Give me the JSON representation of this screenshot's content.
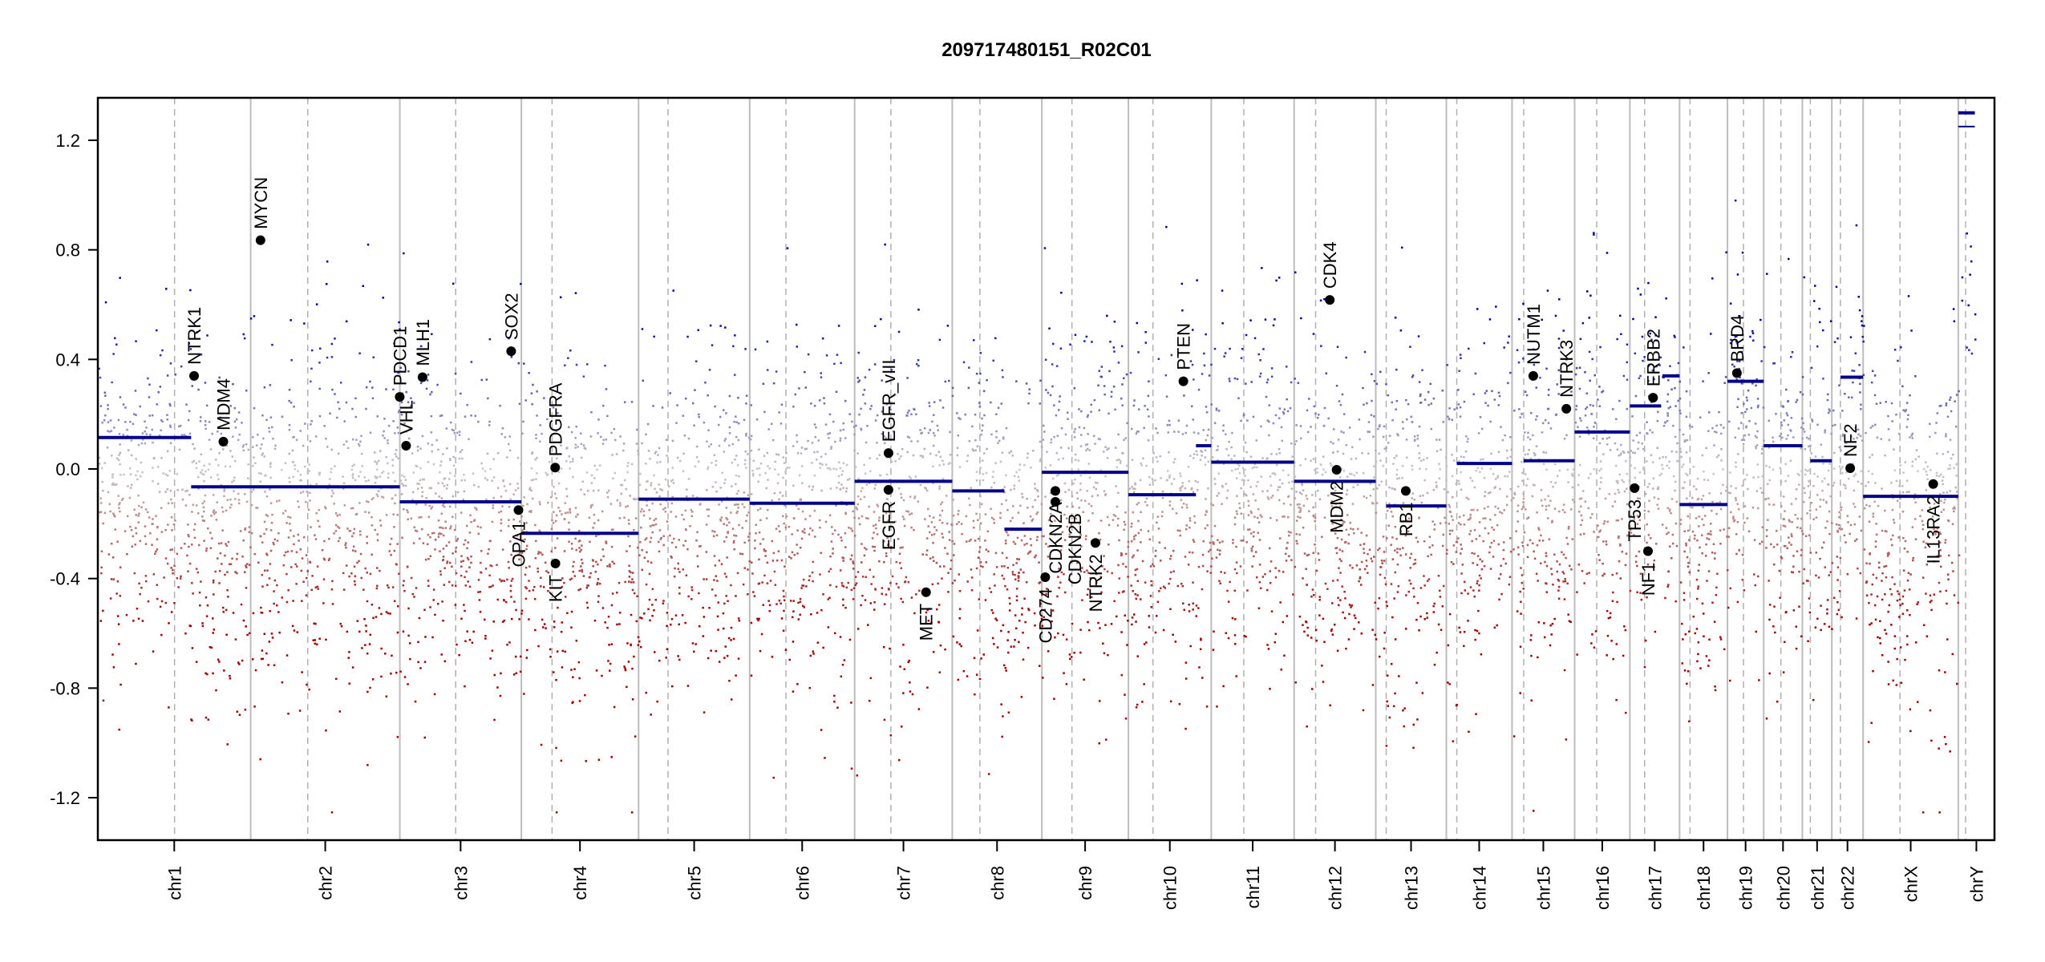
{
  "chart_data": {
    "type": "scatter",
    "title": "209717480151_R02C01",
    "xlabel": "",
    "ylabel": "",
    "ylim": [
      -1.355,
      1.355
    ],
    "y_ticks": [
      "-1.2",
      "-0.8",
      "-0.4",
      "0.0",
      "0.4",
      "0.8",
      "1.2"
    ],
    "y_tick_values": [
      -1.2,
      -0.8,
      -0.4,
      0.0,
      0.4,
      0.8,
      1.2
    ],
    "x_unit": "Mb",
    "chromosomes": [
      {
        "name": "chr1",
        "length": 249,
        "centromere": 125
      },
      {
        "name": "chr2",
        "length": 243,
        "centromere": 93
      },
      {
        "name": "chr3",
        "length": 198,
        "centromere": 91
      },
      {
        "name": "chr4",
        "length": 191,
        "centromere": 50
      },
      {
        "name": "chr5",
        "length": 181,
        "centromere": 48
      },
      {
        "name": "chr6",
        "length": 171,
        "centromere": 59
      },
      {
        "name": "chr7",
        "length": 159,
        "centromere": 59
      },
      {
        "name": "chr8",
        "length": 146,
        "centromere": 45
      },
      {
        "name": "chr9",
        "length": 141,
        "centromere": 49
      },
      {
        "name": "chr10",
        "length": 135,
        "centromere": 40
      },
      {
        "name": "chr11",
        "length": 135,
        "centromere": 53
      },
      {
        "name": "chr12",
        "length": 133,
        "centromere": 35
      },
      {
        "name": "chr13",
        "length": 115,
        "centromere": 17
      },
      {
        "name": "chr14",
        "length": 107,
        "centromere": 17
      },
      {
        "name": "chr15",
        "length": 102,
        "centromere": 19
      },
      {
        "name": "chr16",
        "length": 90,
        "centromere": 36
      },
      {
        "name": "chr17",
        "length": 81,
        "centromere": 24
      },
      {
        "name": "chr18",
        "length": 78,
        "centromere": 17
      },
      {
        "name": "chr19",
        "length": 59,
        "centromere": 26
      },
      {
        "name": "chr20",
        "length": 63,
        "centromere": 28
      },
      {
        "name": "chr21",
        "length": 48,
        "centromere": 13
      },
      {
        "name": "chr22",
        "length": 51,
        "centromere": 14
      },
      {
        "name": "chrX",
        "length": 155,
        "centromere": 60
      },
      {
        "name": "chrY",
        "length": 59,
        "centromere": 12
      }
    ],
    "segments": [
      {
        "chr": "chr1",
        "start": 0,
        "end": 152,
        "value": 0.115
      },
      {
        "chr": "chr1",
        "start": 152,
        "end": 249,
        "value": -0.065
      },
      {
        "chr": "chr2",
        "start": 0,
        "end": 243,
        "value": -0.065
      },
      {
        "chr": "chr3",
        "start": 0,
        "end": 198,
        "value": -0.12
      },
      {
        "chr": "chr4",
        "start": 0,
        "end": 191,
        "value": -0.235
      },
      {
        "chr": "chr5",
        "start": 0,
        "end": 181,
        "value": -0.11
      },
      {
        "chr": "chr6",
        "start": 0,
        "end": 171,
        "value": -0.125
      },
      {
        "chr": "chr7",
        "start": 0,
        "end": 159,
        "value": -0.045
      },
      {
        "chr": "chr8",
        "start": 0,
        "end": 85,
        "value": -0.08
      },
      {
        "chr": "chr8",
        "start": 85,
        "end": 146,
        "value": -0.22
      },
      {
        "chr": "chr9",
        "start": 0,
        "end": 141,
        "value": -0.012
      },
      {
        "chr": "chr10",
        "start": 0,
        "end": 110,
        "value": -0.094
      },
      {
        "chr": "chr10",
        "start": 110,
        "end": 135,
        "value": 0.085
      },
      {
        "chr": "chr11",
        "start": 0,
        "end": 135,
        "value": 0.025
      },
      {
        "chr": "chr12",
        "start": 0,
        "end": 133,
        "value": -0.045
      },
      {
        "chr": "chr13",
        "start": 17,
        "end": 115,
        "value": -0.135
      },
      {
        "chr": "chr14",
        "start": 17,
        "end": 107,
        "value": 0.02
      },
      {
        "chr": "chr15",
        "start": 19,
        "end": 102,
        "value": 0.03
      },
      {
        "chr": "chr16",
        "start": 0,
        "end": 90,
        "value": 0.135
      },
      {
        "chr": "chr17",
        "start": 0,
        "end": 51,
        "value": 0.23
      },
      {
        "chr": "chr17",
        "start": 53,
        "end": 81,
        "value": 0.34
      },
      {
        "chr": "chr18",
        "start": 0,
        "end": 78,
        "value": -0.13
      },
      {
        "chr": "chr19",
        "start": 0,
        "end": 59,
        "value": 0.32
      },
      {
        "chr": "chr20",
        "start": 0,
        "end": 63,
        "value": 0.085
      },
      {
        "chr": "chr21",
        "start": 13,
        "end": 48,
        "value": 0.03
      },
      {
        "chr": "chr22",
        "start": 14,
        "end": 51,
        "value": 0.335
      },
      {
        "chr": "chrX",
        "start": 0,
        "end": 155,
        "value": -0.1
      },
      {
        "chr": "chrY",
        "start": 0,
        "end": 27,
        "value": 1.3
      },
      {
        "chr": "chrY",
        "start": 0,
        "end": 27,
        "value": 1.25
      }
    ],
    "genes": [
      {
        "name": "NTRK1",
        "chr": "chr1",
        "pos": 156.8,
        "value": 0.34
      },
      {
        "name": "MDM4",
        "chr": "chr1",
        "pos": 204.5,
        "value": 0.1
      },
      {
        "name": "MYCN",
        "chr": "chr2",
        "pos": 16.0,
        "value": 0.835
      },
      {
        "name": "PDCD1",
        "chr": "chr2",
        "pos": 242.8,
        "value": 0.263
      },
      {
        "name": "VHL",
        "chr": "chr3",
        "pos": 10.2,
        "value": 0.085
      },
      {
        "name": "MLH1",
        "chr": "chr3",
        "pos": 37.0,
        "value": 0.335
      },
      {
        "name": "SOX2",
        "chr": "chr3",
        "pos": 181.4,
        "value": 0.43
      },
      {
        "name": "OPA1",
        "chr": "chr3",
        "pos": 193.3,
        "value": -0.15
      },
      {
        "name": "PDGFRA",
        "chr": "chr4",
        "pos": 55.1,
        "value": 0.005
      },
      {
        "name": "KIT",
        "chr": "chr4",
        "pos": 55.5,
        "value": -0.345
      },
      {
        "name": "EGFR_vIII",
        "chr": "chr7",
        "pos": 55.2,
        "value": 0.058
      },
      {
        "name": "EGFR",
        "chr": "chr7",
        "pos": 55.1,
        "value": -0.076
      },
      {
        "name": "MET",
        "chr": "chr7",
        "pos": 116.3,
        "value": -0.45
      },
      {
        "name": "CD274",
        "chr": "chr9",
        "pos": 5.5,
        "value": -0.395
      },
      {
        "name": "CDKN2A",
        "chr": "chr9",
        "pos": 21.97,
        "value": -0.08
      },
      {
        "name": "CDKN2B",
        "chr": "chr9",
        "pos": 22.0,
        "value": -0.12
      },
      {
        "name": "NTRK2",
        "chr": "chr9",
        "pos": 87.3,
        "value": -0.27
      },
      {
        "name": "PTEN",
        "chr": "chr10",
        "pos": 89.6,
        "value": 0.32
      },
      {
        "name": "CDK4",
        "chr": "chr12",
        "pos": 58.1,
        "value": 0.617
      },
      {
        "name": "MDM2",
        "chr": "chr12",
        "pos": 69.2,
        "value": -0.003
      },
      {
        "name": "RB1",
        "chr": "chr13",
        "pos": 48.9,
        "value": -0.08
      },
      {
        "name": "NUTM1",
        "chr": "chr15",
        "pos": 34.6,
        "value": 0.34
      },
      {
        "name": "NTRK3",
        "chr": "chr15",
        "pos": 88.5,
        "value": 0.22
      },
      {
        "name": "TP53",
        "chr": "chr17",
        "pos": 7.6,
        "value": -0.07
      },
      {
        "name": "NF1",
        "chr": "chr17",
        "pos": 29.5,
        "value": -0.3
      },
      {
        "name": "ERBB2",
        "chr": "chr17",
        "pos": 37.8,
        "value": 0.26
      },
      {
        "name": "BRD4",
        "chr": "chr19",
        "pos": 15.4,
        "value": 0.35
      },
      {
        "name": "NF2",
        "chr": "chr22",
        "pos": 30.0,
        "value": 0.003
      },
      {
        "name": "IL13RA2",
        "chr": "chrX",
        "pos": 114.2,
        "value": -0.055
      }
    ],
    "colors": {
      "segment": "#00008b",
      "positive": "#0000a0",
      "neutral": "#c8c8c8",
      "negative": "#a00000",
      "chr_boundary": "#bdbdbd",
      "centromere": "#b0b0b0",
      "gene_point": "#000000"
    },
    "grid": false,
    "legend": "none"
  }
}
